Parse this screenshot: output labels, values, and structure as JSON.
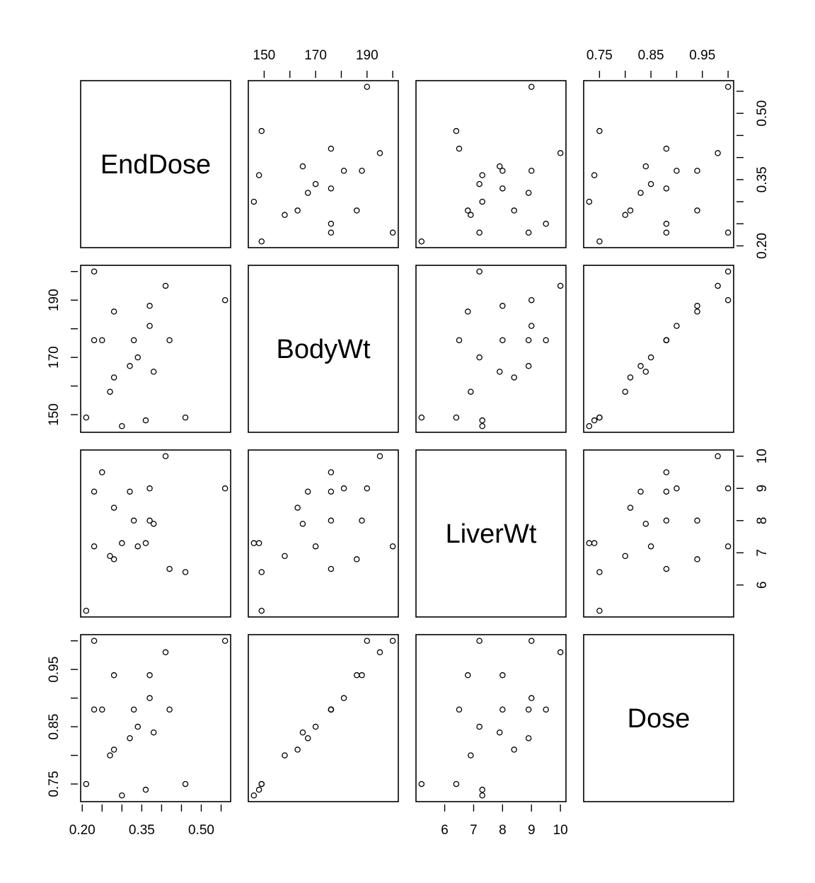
{
  "chart_data": {
    "type": "scatter-matrix",
    "variables": [
      "EndDose",
      "BodyWt",
      "LiverWt",
      "Dose"
    ],
    "data": {
      "EndDose": [
        0.42,
        0.25,
        0.56,
        0.23,
        0.23,
        0.32,
        0.37,
        0.41,
        0.33,
        0.38,
        0.27,
        0.36,
        0.21,
        0.28,
        0.34,
        0.28,
        0.3,
        0.37,
        0.46
      ],
      "BodyWt": [
        176,
        176,
        190,
        176,
        200,
        167,
        188,
        195,
        176,
        165,
        158,
        148,
        149,
        163,
        170,
        186,
        146,
        181,
        149
      ],
      "LiverWt": [
        6.5,
        9.5,
        9.0,
        8.9,
        7.2,
        8.9,
        8.0,
        10.0,
        8.0,
        7.9,
        6.9,
        7.3,
        5.2,
        8.4,
        7.2,
        6.8,
        7.3,
        9.0,
        6.4
      ],
      "Dose": [
        0.88,
        0.88,
        1.0,
        0.88,
        1.0,
        0.83,
        0.94,
        0.98,
        0.88,
        0.84,
        0.8,
        0.74,
        0.75,
        0.81,
        0.85,
        0.94,
        0.73,
        0.9,
        0.75
      ]
    },
    "axes": {
      "EndDose": {
        "ticks": [
          0.2,
          0.25,
          0.3,
          0.35,
          0.4,
          0.45,
          0.5,
          0.55
        ],
        "labels": [
          "0.20",
          "0.35",
          "0.50"
        ],
        "label_at": [
          0.2,
          0.35,
          0.5
        ]
      },
      "BodyWt": {
        "ticks": [
          150,
          160,
          170,
          180,
          190,
          200
        ],
        "labels": [
          "150",
          "170",
          "190"
        ],
        "label_at": [
          150,
          170,
          190
        ]
      },
      "LiverWt": {
        "ticks": [
          6,
          7,
          8,
          9,
          10
        ],
        "labels": [
          "6",
          "7",
          "8",
          "9",
          "10"
        ],
        "label_at": [
          6,
          7,
          8,
          9,
          10
        ]
      },
      "Dose": {
        "ticks": [
          0.75,
          0.8,
          0.85,
          0.9,
          0.95,
          1.0
        ],
        "labels": [
          "0.75",
          "0.85",
          "0.95"
        ],
        "label_at": [
          0.75,
          0.85,
          0.95
        ]
      }
    },
    "axis_sides": {
      "top": [
        "BodyWt",
        "Dose"
      ],
      "bottom": [
        "EndDose",
        "LiverWt"
      ],
      "left": [
        "BodyWt",
        "Dose"
      ],
      "right": [
        "EndDose",
        "LiverWt"
      ]
    }
  }
}
